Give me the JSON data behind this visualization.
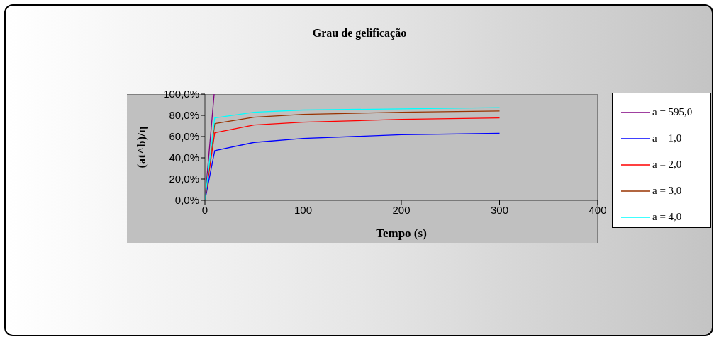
{
  "chart_data": {
    "type": "line",
    "title": "Grau de gelificação",
    "xlabel": "Tempo (s)",
    "ylabel": "(at^b)/η",
    "x": [
      0,
      10,
      50,
      100,
      200,
      300
    ],
    "series": [
      {
        "name": "a = 595,0",
        "color": "#800080",
        "x": [
          0,
          9.4
        ],
        "values": [
          0,
          100
        ]
      },
      {
        "name": "a = 1,0",
        "color": "#0000ff",
        "values": [
          0,
          46.7,
          54.5,
          58.3,
          61.7,
          63.0
        ]
      },
      {
        "name": "a = 2,0",
        "color": "#ff0000",
        "values": [
          0,
          63.6,
          70.9,
          73.6,
          76.2,
          77.6
        ]
      },
      {
        "name": "a = 3,0",
        "color": "#993300",
        "values": [
          0,
          72.3,
          78.2,
          80.9,
          82.9,
          84.1
        ]
      },
      {
        "name": "a = 4,0",
        "color": "#00ffff",
        "values": [
          0,
          77.6,
          82.9,
          85.0,
          86.1,
          87.3
        ]
      }
    ],
    "xlim": [
      0,
      400
    ],
    "xticks": [
      0,
      100,
      200,
      300,
      400
    ],
    "ylim": [
      0,
      100
    ],
    "yticks": [
      {
        "value": 0,
        "label": "0,0%"
      },
      {
        "value": 20,
        "label": "20,0%"
      },
      {
        "value": 40,
        "label": "40,0%"
      },
      {
        "value": 60,
        "label": "60,0%"
      },
      {
        "value": 80,
        "label": "80,0%"
      },
      {
        "value": 100,
        "label": "100,0%"
      }
    ],
    "grid": false,
    "legend": "right",
    "marker": "none",
    "line_style": "solid"
  }
}
